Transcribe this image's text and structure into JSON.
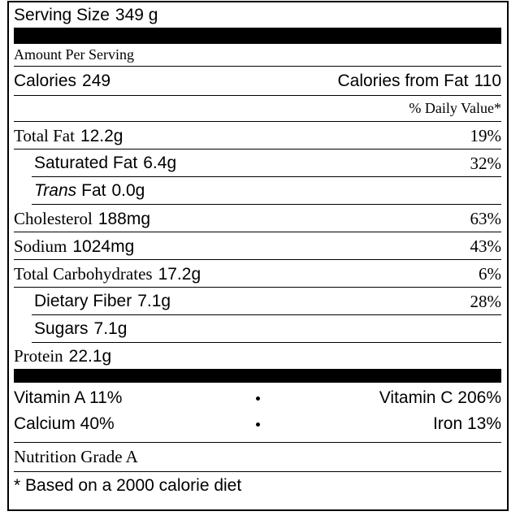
{
  "serving_size": {
    "label": "Serving Size",
    "amount": "349 g"
  },
  "amount_per_serving": "Amount Per Serving",
  "calories": {
    "label": "Calories",
    "amount": "249"
  },
  "calories_from_fat": {
    "label": "Calories from Fat",
    "amount": "110"
  },
  "daily_value_header": "% Daily Value*",
  "nutrients": [
    {
      "label": "Total Fat",
      "amount": "12.2g",
      "daily_value": "19%"
    },
    {
      "label": "Saturated Fat",
      "amount": "6.4g",
      "daily_value": "32%",
      "sub": true
    },
    {
      "label_italic": "Trans",
      "label": "Fat",
      "amount": "0.0g",
      "sub": true
    },
    {
      "label": "Cholesterol",
      "amount": "188mg",
      "daily_value": "63%"
    },
    {
      "label": "Sodium",
      "amount": "1024mg",
      "daily_value": "43%"
    },
    {
      "label": "Total Carbohydrates",
      "amount": "17.2g",
      "daily_value": "6%"
    },
    {
      "label": "Dietary Fiber",
      "amount": "7.1g",
      "daily_value": "28%",
      "sub": true
    },
    {
      "label": "Sugars",
      "amount": "7.1g",
      "sub": true
    },
    {
      "label": "Protein",
      "amount": "22.1g"
    }
  ],
  "vitamins": [
    {
      "left": "Vitamin A 11%",
      "right": "Vitamin C 206%"
    },
    {
      "left": "Calcium 40%",
      "right": "Iron 13%"
    }
  ],
  "grade": "Nutrition Grade A",
  "footnote": "* Based on a 2000 calorie diet"
}
